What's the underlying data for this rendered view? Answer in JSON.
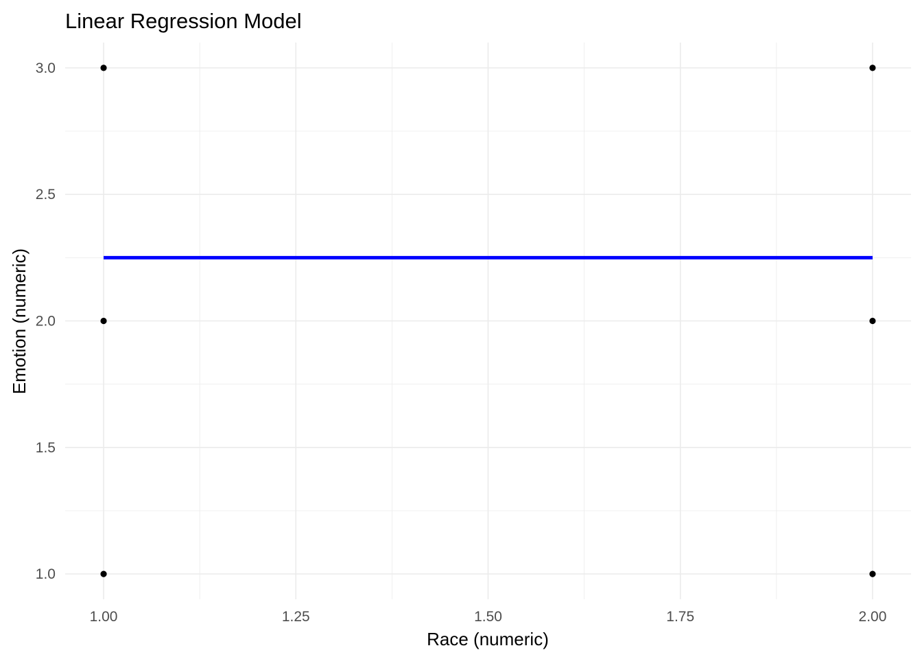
{
  "chart_data": {
    "type": "scatter",
    "title": "Linear Regression Model",
    "xlabel": "Race (numeric)",
    "ylabel": "Emotion (numeric)",
    "xlim": [
      0.95,
      2.05
    ],
    "ylim": [
      0.9,
      3.1
    ],
    "x_ticks": [
      1.0,
      1.25,
      1.5,
      1.75,
      2.0
    ],
    "x_tick_labels": [
      "1.00",
      "1.25",
      "1.50",
      "1.75",
      "2.00"
    ],
    "x_minor_ticks": [
      1.125,
      1.375,
      1.625,
      1.875
    ],
    "y_ticks": [
      1.0,
      1.5,
      2.0,
      2.5,
      3.0
    ],
    "y_tick_labels": [
      "1.0",
      "1.5",
      "2.0",
      "2.5",
      "3.0"
    ],
    "y_minor_ticks": [
      1.25,
      1.75,
      2.25,
      2.75
    ],
    "grid": true,
    "series": [
      {
        "type": "scatter",
        "points": [
          {
            "x": 1.0,
            "y": 3.0
          },
          {
            "x": 1.0,
            "y": 2.0
          },
          {
            "x": 1.0,
            "y": 1.0
          },
          {
            "x": 2.0,
            "y": 3.0
          },
          {
            "x": 2.0,
            "y": 2.0
          },
          {
            "x": 2.0,
            "y": 1.0
          }
        ],
        "color": "#000000"
      },
      {
        "type": "line",
        "points": [
          {
            "x": 1.0,
            "y": 2.25
          },
          {
            "x": 2.0,
            "y": 2.25
          }
        ],
        "color": "#0000ff"
      }
    ]
  }
}
